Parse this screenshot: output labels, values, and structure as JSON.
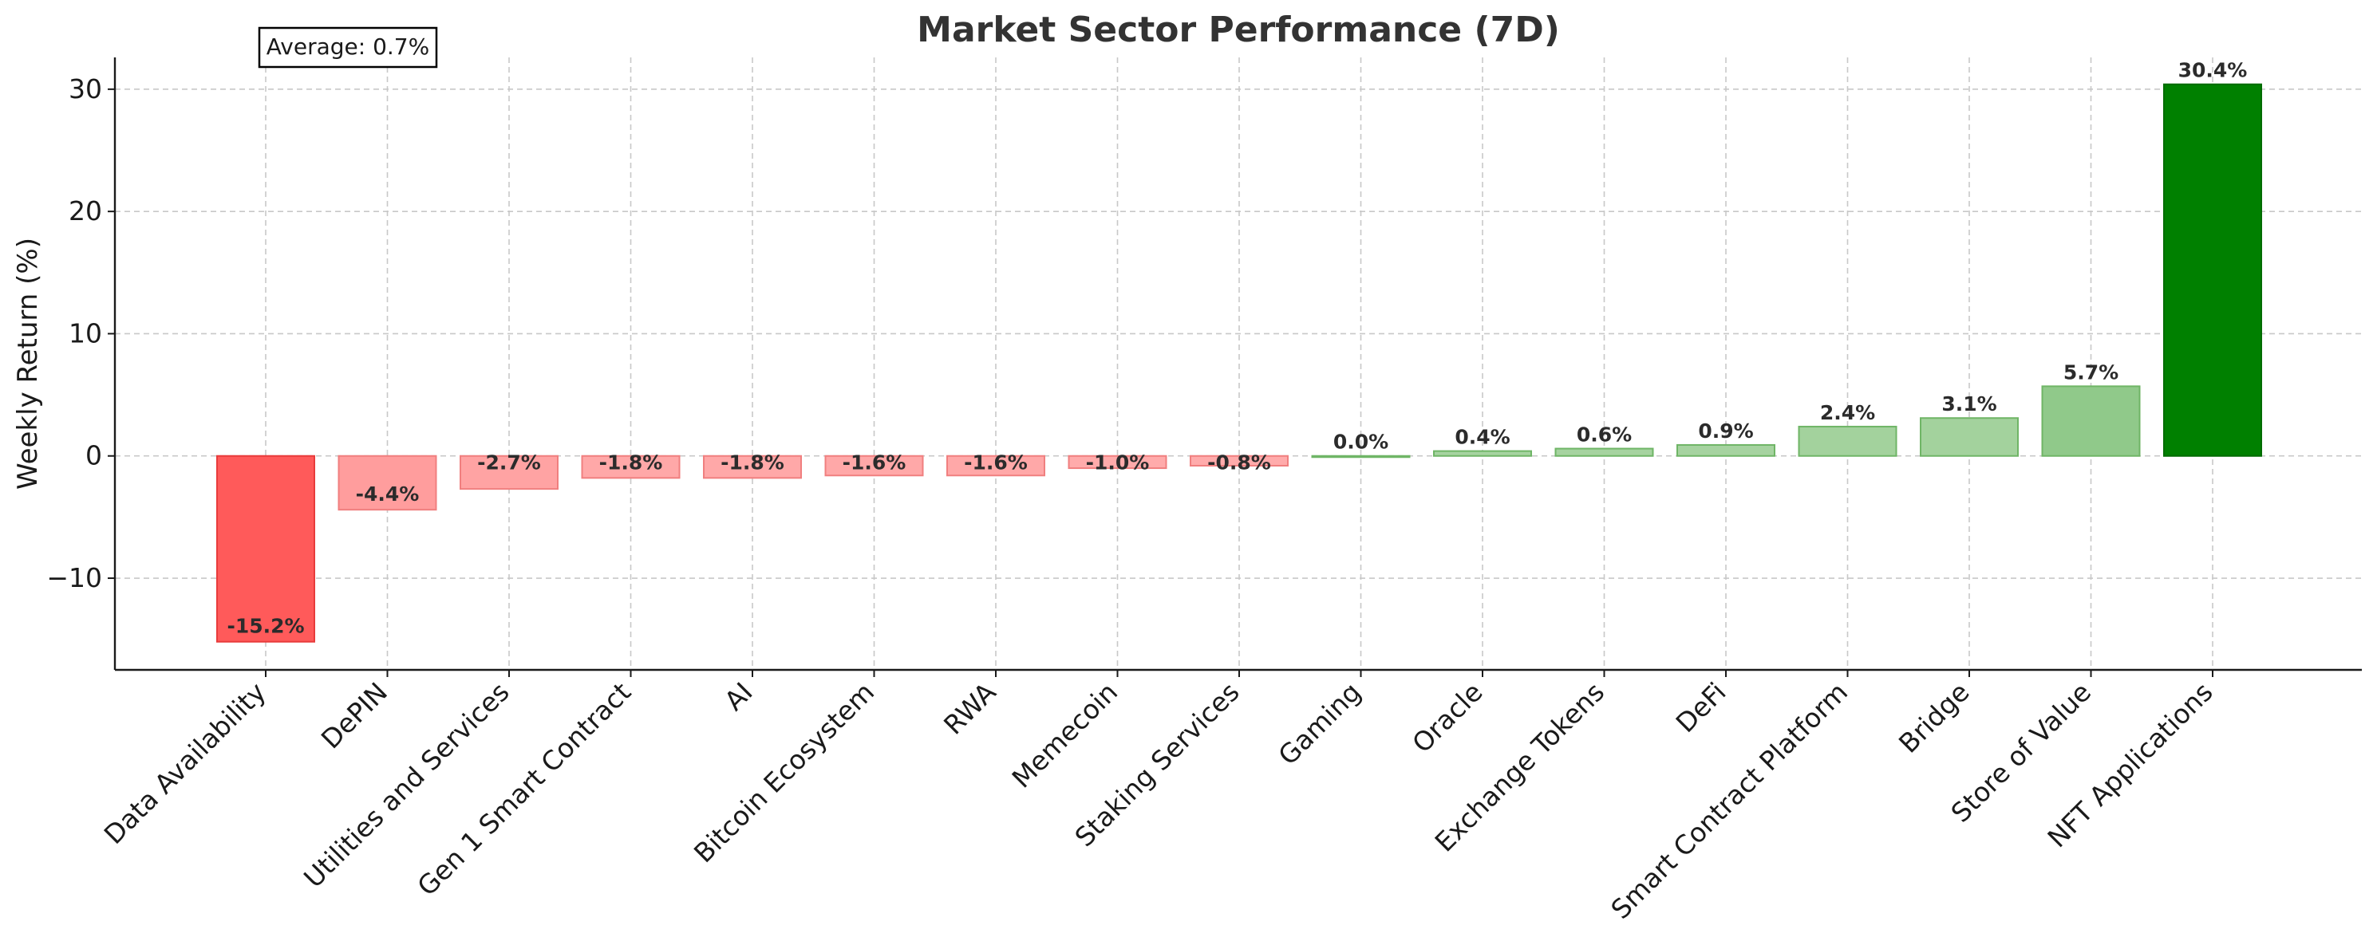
{
  "chart_data": {
    "type": "bar",
    "title": "Market Sector Performance (7D)",
    "xlabel": "",
    "ylabel": "Weekly Return (%)",
    "ylim": [
      -17.5,
      32.6
    ],
    "yticks": [
      {
        "value": -10,
        "label": "−10"
      },
      {
        "value": 0,
        "label": "0"
      },
      {
        "value": 10,
        "label": "10"
      },
      {
        "value": 20,
        "label": "20"
      },
      {
        "value": 30,
        "label": "30"
      }
    ],
    "grid": true,
    "categories": [
      "Data Availability",
      "DePIN",
      "Utilities and Services",
      "Gen 1 Smart Contract",
      "AI",
      "Bitcoin Ecosystem",
      "RWA",
      "Memecoin",
      "Staking Services",
      "Gaming",
      "Oracle",
      "Exchange Tokens",
      "DeFi",
      "Smart Contract Platform",
      "Bridge",
      "Store of Value",
      "NFT Applications"
    ],
    "values": [
      -15.2,
      -4.4,
      -2.7,
      -1.8,
      -1.8,
      -1.6,
      -1.6,
      -1.0,
      -0.8,
      0.0,
      0.4,
      0.6,
      0.9,
      2.4,
      3.1,
      5.7,
      30.4
    ],
    "data_labels": [
      "-15.2%",
      "-4.4%",
      "-2.7%",
      "-1.8%",
      "-1.8%",
      "-1.6%",
      "-1.6%",
      "-1.0%",
      "-0.8%",
      "0.0%",
      "0.4%",
      "0.6%",
      "0.9%",
      "2.4%",
      "3.1%",
      "5.7%",
      "30.4%"
    ],
    "annotation": "Average: 0.7%",
    "colors": {
      "negative_strong": "#ff5a5a",
      "negative_light": "#ffa3a3",
      "positive_light": "#a6d3a0",
      "positive_mid": "#90c98a",
      "positive_strong": "#008000"
    },
    "bar_colors": [
      "#ff5a5a",
      "#ff9d9d",
      "#ffa3a3",
      "#ffa8a8",
      "#ffa8a8",
      "#ffa8a8",
      "#ffa8a8",
      "#ffabab",
      "#ffabab",
      "#a6d3a0",
      "#a6d3a0",
      "#a6d3a0",
      "#a6d3a0",
      "#a3d29d",
      "#a3d29d",
      "#90c98a",
      "#008000"
    ],
    "bar_edge_colors": [
      "#e83b3b",
      "#f07f7f",
      "#f07f7f",
      "#f07f7f",
      "#f07f7f",
      "#f07f7f",
      "#f07f7f",
      "#f07f7f",
      "#f07f7f",
      "#6fb566",
      "#6fb566",
      "#6fb566",
      "#6fb566",
      "#6fb566",
      "#6fb566",
      "#6fb566",
      "#006b00"
    ]
  }
}
